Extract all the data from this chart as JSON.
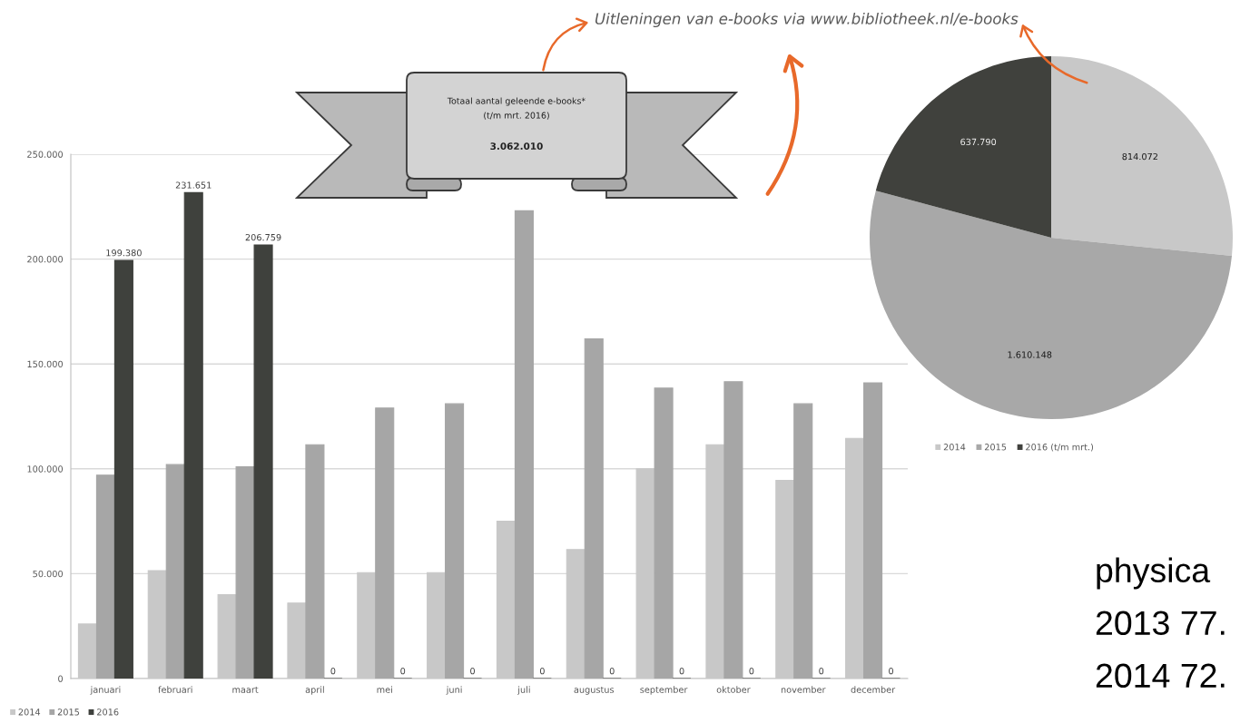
{
  "chart_data": [
    {
      "type": "bar",
      "categories": [
        "januari",
        "februari",
        "maart",
        "april",
        "mei",
        "juni",
        "juli",
        "augustus",
        "september",
        "oktober",
        "november",
        "december"
      ],
      "series": [
        {
          "name": "2014",
          "color": "#c8c8c8",
          "values": [
            26000,
            51500,
            40000,
            36000,
            50500,
            50500,
            75000,
            61500,
            100000,
            111500,
            94500,
            114500
          ]
        },
        {
          "name": "2015",
          "color": "#a6a6a6",
          "values": [
            97000,
            102000,
            101000,
            111500,
            129000,
            131000,
            223000,
            162000,
            138500,
            141500,
            131000,
            141000
          ]
        },
        {
          "name": "2016",
          "color": "#3f413d",
          "values": [
            199380,
            231651,
            206759,
            0,
            0,
            0,
            0,
            0,
            0,
            0,
            0,
            0
          ],
          "value_labels": [
            "199.380",
            "231.651",
            "206.759",
            "0",
            "0",
            "0",
            "0",
            "0",
            "0",
            "0",
            "0",
            "0"
          ]
        }
      ],
      "ylim": [
        0,
        250000
      ],
      "yticks": [
        0,
        {
          "value": 50000,
          "label": "50.000"
        },
        {
          "value": 100000,
          "label": "100.000"
        },
        {
          "value": 150000,
          "label": "150.000"
        },
        {
          "value": 200000,
          "label": "200.000"
        },
        {
          "value": 250000,
          "label": "250.000"
        }
      ],
      "grid": "y",
      "legend": "bottom"
    },
    {
      "type": "pie",
      "title": "Uitleningen van e-books via www.bibliotheek.nl/e-books",
      "categories": [
        "2014",
        "2015",
        "2016 (t/m mrt.)"
      ],
      "values": [
        814072,
        1610148,
        637790
      ],
      "colors": [
        "#c8c8c8",
        "#a8a8a8",
        "#40413d"
      ],
      "value_labels": [
        "814.072",
        "1.610.148",
        "637.790"
      ],
      "legend": "bottom",
      "annotations": [
        "Totaal aantal geleende e-books*",
        "(t/m mrt. 2016)",
        "3.062.010",
        "physica",
        "2013 77.",
        "2014 72."
      ]
    }
  ]
}
